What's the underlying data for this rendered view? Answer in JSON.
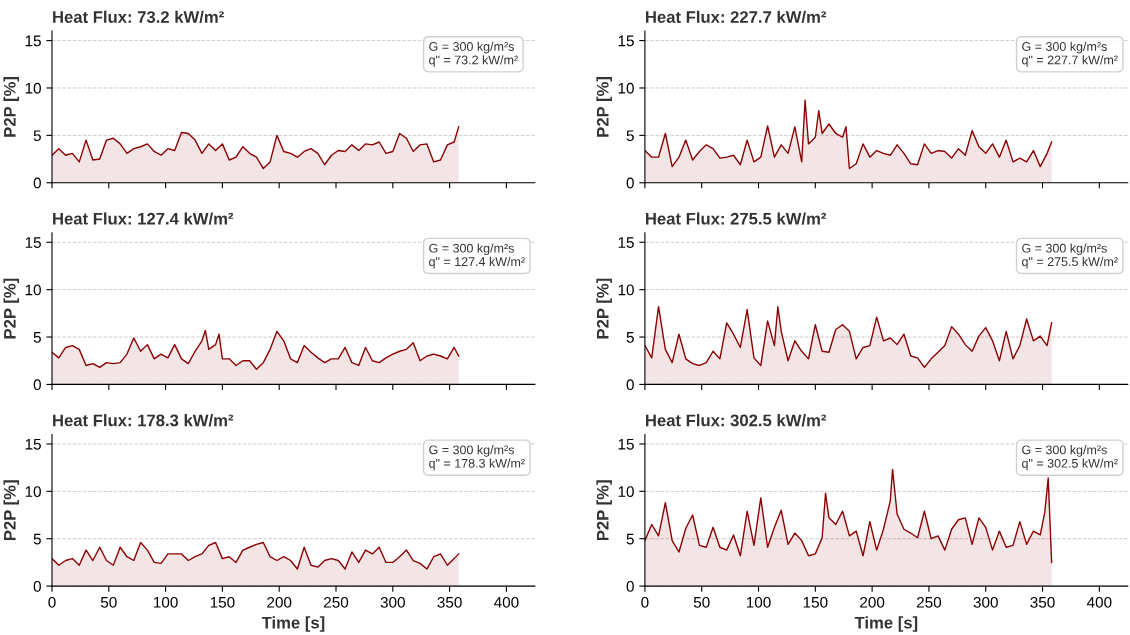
{
  "chart_data": [
    {
      "type": "area",
      "title": "Heat Flux: 73.2 kW/m²",
      "ylabel": "P2P [%]",
      "annotations": [
        "G = 300 kg/m²s\nq\" = 73.2 kW/m²"
      ],
      "xlim": [
        0,
        425
      ],
      "ylim": [
        0,
        16
      ],
      "xticks": [
        0,
        50,
        100,
        150,
        200,
        250,
        300,
        350,
        400
      ],
      "yticks": [
        0,
        5,
        10,
        15
      ],
      "grid": "y",
      "tick_labels": "y",
      "line_style": "solid",
      "series": [
        {
          "color": "#8b0000",
          "x": [
            0,
            6,
            12,
            18,
            24,
            30,
            36,
            42,
            48,
            54,
            60,
            66,
            72,
            78,
            84,
            90,
            96,
            102,
            108,
            114,
            120,
            126,
            132,
            138,
            144,
            150,
            156,
            162,
            168,
            174,
            180,
            186,
            192,
            198,
            204,
            210,
            216,
            222,
            228,
            234,
            240,
            246,
            252,
            258,
            264,
            270,
            276,
            282,
            288,
            294,
            300,
            306,
            312,
            318,
            324,
            330,
            336,
            342,
            348,
            354,
            358
          ],
          "values": [
            2.9,
            3.6,
            2.9,
            3.1,
            2.2,
            4.5,
            2.4,
            2.5,
            4.5,
            4.7,
            4.1,
            3.1,
            3.6,
            3.8,
            4.1,
            3.3,
            2.9,
            3.6,
            3.4,
            5.3,
            5.2,
            4.5,
            3.1,
            4.1,
            3.4,
            4.1,
            2.4,
            2.7,
            3.8,
            3.1,
            2.7,
            1.5,
            2.2,
            5.0,
            3.3,
            3.1,
            2.7,
            3.3,
            3.6,
            3.1,
            1.9,
            2.9,
            3.4,
            3.3,
            4.0,
            3.4,
            4.1,
            4.0,
            4.3,
            3.1,
            3.3,
            5.2,
            4.7,
            3.3,
            4.0,
            4.1,
            2.2,
            2.4,
            4.0,
            4.3,
            5.9
          ]
        }
      ]
    },
    {
      "type": "area",
      "title": "Heat Flux: 227.7 kW/m²",
      "ylabel": "P2P [%]",
      "annotations": [
        "G = 300 kg/m²s\nq\" = 227.7 kW/m²"
      ],
      "xlim": [
        0,
        425
      ],
      "ylim": [
        0,
        16
      ],
      "xticks": [
        0,
        50,
        100,
        150,
        200,
        250,
        300,
        350,
        400
      ],
      "yticks": [
        0,
        5,
        10,
        15
      ],
      "grid": "y",
      "tick_labels": "y",
      "line_style": "solid",
      "series": [
        {
          "color": "#8b0000",
          "x": [
            0,
            6,
            12,
            18,
            24,
            30,
            36,
            42,
            48,
            54,
            60,
            66,
            72,
            78,
            84,
            90,
            96,
            102,
            108,
            114,
            120,
            126,
            132,
            138,
            141,
            144,
            150,
            153,
            156,
            162,
            168,
            174,
            177,
            180,
            186,
            192,
            198,
            204,
            210,
            216,
            222,
            228,
            234,
            240,
            246,
            252,
            258,
            264,
            270,
            276,
            282,
            288,
            294,
            300,
            306,
            312,
            318,
            324,
            330,
            336,
            342,
            348,
            354,
            358
          ],
          "values": [
            3.4,
            2.7,
            2.7,
            5.2,
            1.7,
            2.7,
            4.5,
            2.4,
            3.3,
            4.0,
            3.6,
            2.6,
            2.7,
            2.9,
            1.9,
            4.5,
            2.2,
            2.7,
            6.0,
            2.7,
            4.0,
            3.1,
            5.9,
            2.2,
            8.7,
            4.1,
            4.8,
            7.6,
            5.2,
            6.2,
            5.2,
            4.8,
            5.9,
            1.5,
            2.0,
            4.1,
            2.7,
            3.4,
            3.1,
            2.9,
            4.0,
            3.1,
            2.0,
            1.9,
            4.1,
            3.1,
            3.4,
            3.3,
            2.6,
            3.6,
            2.9,
            5.5,
            3.8,
            3.1,
            4.1,
            2.7,
            4.5,
            2.2,
            2.6,
            2.2,
            3.4,
            1.7,
            3.1,
            4.3
          ]
        }
      ]
    },
    {
      "type": "area",
      "title": "Heat Flux: 127.4 kW/m²",
      "ylabel": "P2P [%]",
      "annotations": [
        "G = 300 kg/m²s\nq\" = 127.4 kW/m²"
      ],
      "xlim": [
        0,
        425
      ],
      "ylim": [
        0,
        16
      ],
      "xticks": [
        0,
        50,
        100,
        150,
        200,
        250,
        300,
        350,
        400
      ],
      "yticks": [
        0,
        5,
        10,
        15
      ],
      "grid": "y",
      "tick_labels": "y",
      "line_style": "solid",
      "series": [
        {
          "color": "#8b0000",
          "x": [
            0,
            6,
            12,
            18,
            24,
            30,
            36,
            42,
            48,
            54,
            60,
            66,
            72,
            78,
            84,
            90,
            96,
            102,
            108,
            114,
            120,
            126,
            132,
            135,
            138,
            144,
            147,
            150,
            156,
            162,
            168,
            174,
            180,
            186,
            192,
            198,
            204,
            210,
            216,
            222,
            228,
            234,
            240,
            246,
            252,
            258,
            264,
            270,
            276,
            282,
            288,
            294,
            300,
            306,
            312,
            318,
            324,
            330,
            336,
            342,
            348,
            354,
            358
          ],
          "values": [
            3.4,
            2.8,
            3.9,
            4.1,
            3.7,
            2.0,
            2.2,
            1.8,
            2.3,
            2.2,
            2.3,
            3.2,
            4.9,
            3.5,
            4.2,
            2.7,
            3.2,
            2.8,
            4.2,
            2.7,
            2.2,
            3.5,
            4.6,
            5.7,
            3.7,
            4.2,
            5.3,
            2.7,
            2.7,
            2.0,
            2.5,
            2.5,
            1.6,
            2.3,
            3.7,
            5.6,
            4.6,
            2.7,
            2.3,
            4.1,
            3.4,
            2.8,
            2.3,
            2.7,
            2.7,
            3.9,
            2.3,
            2.0,
            3.9,
            2.5,
            2.3,
            2.8,
            3.2,
            3.5,
            3.7,
            4.4,
            2.5,
            3.0,
            3.2,
            3.0,
            2.7,
            3.9,
            3.0
          ]
        }
      ]
    },
    {
      "type": "area",
      "title": "Heat Flux: 275.5 kW/m²",
      "ylabel": "P2P [%]",
      "annotations": [
        "G = 300 kg/m²s\nq\" = 275.5 kW/m²"
      ],
      "xlim": [
        0,
        425
      ],
      "ylim": [
        0,
        16
      ],
      "xticks": [
        0,
        50,
        100,
        150,
        200,
        250,
        300,
        350,
        400
      ],
      "yticks": [
        0,
        5,
        10,
        15
      ],
      "grid": "y",
      "tick_labels": "y",
      "line_style": "solid",
      "series": [
        {
          "color": "#8b0000",
          "x": [
            0,
            6,
            12,
            18,
            24,
            30,
            36,
            42,
            48,
            54,
            60,
            66,
            72,
            78,
            84,
            90,
            96,
            102,
            108,
            114,
            117,
            120,
            126,
            132,
            138,
            144,
            150,
            156,
            162,
            168,
            174,
            180,
            186,
            192,
            198,
            204,
            210,
            216,
            222,
            228,
            234,
            240,
            246,
            252,
            258,
            264,
            270,
            276,
            282,
            288,
            294,
            300,
            306,
            312,
            318,
            324,
            330,
            336,
            342,
            348,
            354,
            358
          ],
          "values": [
            4.1,
            2.8,
            8.2,
            3.7,
            2.3,
            5.3,
            2.7,
            2.2,
            2.0,
            2.3,
            3.5,
            2.7,
            6.5,
            5.3,
            3.9,
            7.9,
            2.8,
            2.0,
            6.7,
            4.1,
            8.2,
            5.6,
            2.5,
            4.6,
            3.5,
            2.7,
            6.3,
            3.5,
            3.4,
            5.8,
            6.3,
            5.6,
            2.7,
            3.9,
            4.1,
            7.1,
            4.6,
            4.9,
            4.2,
            5.3,
            3.0,
            2.8,
            1.8,
            2.7,
            3.4,
            4.1,
            6.1,
            5.3,
            4.2,
            3.5,
            5.1,
            6.0,
            4.6,
            2.5,
            5.6,
            2.7,
            4.1,
            6.9,
            4.6,
            5.1,
            4.1,
            6.5
          ]
        }
      ]
    },
    {
      "type": "area",
      "title": "Heat Flux: 178.3 kW/m²",
      "xlabel": "Time [s]",
      "ylabel": "P2P [%]",
      "annotations": [
        "G = 300 kg/m²s\nq\" = 178.3 kW/m²"
      ],
      "xlim": [
        0,
        425
      ],
      "ylim": [
        0,
        16
      ],
      "xticks": [
        0,
        50,
        100,
        150,
        200,
        250,
        300,
        350,
        400
      ],
      "yticks": [
        0,
        5,
        10,
        15
      ],
      "grid": "y",
      "line_style": "solid",
      "series": [
        {
          "color": "#8b0000",
          "x": [
            0,
            6,
            12,
            18,
            24,
            30,
            36,
            42,
            48,
            54,
            60,
            66,
            72,
            78,
            84,
            90,
            96,
            102,
            108,
            114,
            120,
            126,
            132,
            138,
            144,
            150,
            156,
            162,
            168,
            174,
            180,
            186,
            192,
            198,
            204,
            210,
            216,
            222,
            228,
            234,
            240,
            246,
            252,
            258,
            264,
            270,
            276,
            282,
            288,
            294,
            300,
            306,
            312,
            318,
            324,
            330,
            336,
            342,
            348,
            354,
            358
          ],
          "values": [
            2.9,
            2.2,
            2.7,
            2.9,
            2.2,
            3.8,
            2.7,
            4.1,
            2.7,
            2.2,
            4.1,
            3.1,
            2.7,
            4.6,
            3.8,
            2.5,
            2.4,
            3.4,
            3.4,
            3.4,
            2.7,
            3.1,
            3.4,
            4.3,
            4.6,
            2.9,
            3.1,
            2.5,
            3.8,
            4.1,
            4.4,
            4.6,
            3.1,
            2.7,
            3.1,
            2.7,
            1.8,
            4.1,
            2.2,
            2.0,
            2.7,
            2.9,
            2.7,
            1.8,
            3.6,
            2.5,
            3.8,
            3.4,
            4.1,
            2.5,
            2.5,
            3.1,
            3.8,
            2.7,
            2.4,
            1.8,
            3.1,
            3.4,
            2.2,
            2.9,
            3.4
          ]
        }
      ]
    },
    {
      "type": "area",
      "title": "Heat Flux: 302.5 kW/m²",
      "xlabel": "Time [s]",
      "ylabel": "P2P [%]",
      "annotations": [
        "G = 300 kg/m²s\nq\" = 302.5 kW/m²"
      ],
      "xlim": [
        0,
        425
      ],
      "ylim": [
        0,
        16
      ],
      "xticks": [
        0,
        50,
        100,
        150,
        200,
        250,
        300,
        350,
        400
      ],
      "yticks": [
        0,
        5,
        10,
        15
      ],
      "grid": "y",
      "line_style": "solid",
      "series": [
        {
          "color": "#8b0000",
          "x": [
            0,
            6,
            12,
            18,
            24,
            30,
            36,
            42,
            48,
            54,
            60,
            66,
            72,
            78,
            84,
            90,
            96,
            102,
            108,
            114,
            120,
            126,
            132,
            138,
            144,
            150,
            156,
            159,
            162,
            168,
            174,
            180,
            186,
            192,
            198,
            204,
            210,
            216,
            218,
            222,
            228,
            234,
            240,
            246,
            252,
            258,
            264,
            270,
            276,
            282,
            288,
            294,
            300,
            306,
            312,
            318,
            324,
            330,
            336,
            342,
            348,
            352,
            355,
            358
          ],
          "values": [
            4.8,
            6.5,
            5.3,
            8.8,
            4.8,
            3.6,
            6.1,
            7.5,
            4.3,
            4.1,
            6.2,
            4.1,
            3.8,
            5.4,
            3.2,
            7.9,
            4.3,
            9.3,
            4.1,
            6.2,
            8.0,
            4.4,
            5.6,
            4.8,
            3.2,
            3.4,
            5.1,
            9.8,
            7.2,
            6.5,
            7.9,
            5.3,
            5.8,
            3.2,
            6.8,
            3.8,
            6.0,
            9.0,
            12.3,
            7.6,
            6.0,
            5.6,
            5.1,
            7.9,
            5.0,
            5.3,
            3.8,
            6.0,
            7.0,
            7.2,
            4.4,
            7.2,
            6.2,
            3.8,
            5.8,
            4.1,
            4.3,
            6.8,
            4.4,
            5.8,
            5.4,
            7.8,
            11.4,
            2.5
          ]
        }
      ]
    }
  ]
}
